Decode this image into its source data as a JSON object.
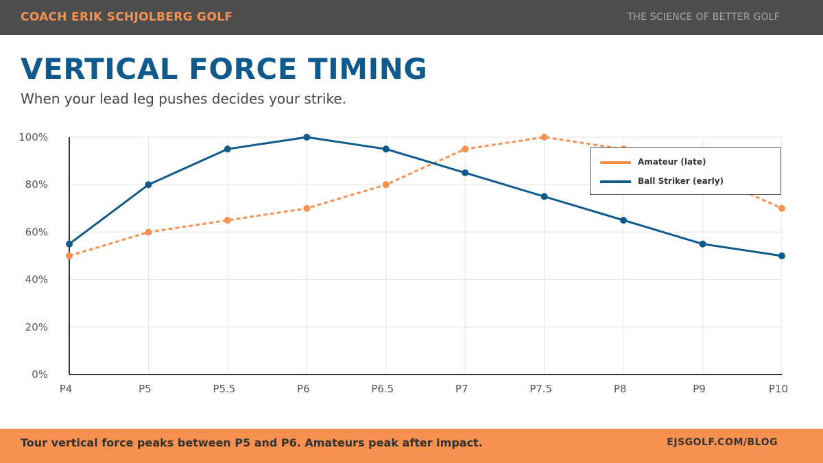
{
  "header": {
    "brand": "COACH ERIK SCHJOLBERG GOLF",
    "tagline": "THE SCIENCE OF BETTER GOLF"
  },
  "title": "VERTICAL FORCE TIMING",
  "subtitle": "When your lead leg pushes decides your strike.",
  "footer": {
    "note": "Tour vertical force peaks between P5 and P6. Amateurs peak after impact.",
    "link": "EJSGOLF.COM/BLOG"
  },
  "colors": {
    "amateur": "#f79150",
    "ball_striker": "#0f5a8c",
    "grid": "#e6e6e6",
    "axis": "#333333"
  },
  "chart_data": {
    "type": "line",
    "categories": [
      "P4",
      "P5",
      "P5.5",
      "P6",
      "P6.5",
      "P7",
      "P7.5",
      "P8",
      "P9",
      "P10"
    ],
    "series": [
      {
        "name": "Amateur (late)",
        "values": [
          50,
          60,
          65,
          70,
          80,
          95,
          100,
          95,
          85,
          70
        ],
        "style": "dashed"
      },
      {
        "name": "Ball Striker (early)",
        "values": [
          55,
          80,
          95,
          100,
          95,
          85,
          75,
          65,
          55,
          50
        ],
        "style": "solid"
      }
    ],
    "y_ticks": [
      "0%",
      "20%",
      "40%",
      "60%",
      "80%",
      "100%"
    ],
    "ylim": [
      0,
      100
    ],
    "grid": true,
    "legend_position": "top-right"
  }
}
